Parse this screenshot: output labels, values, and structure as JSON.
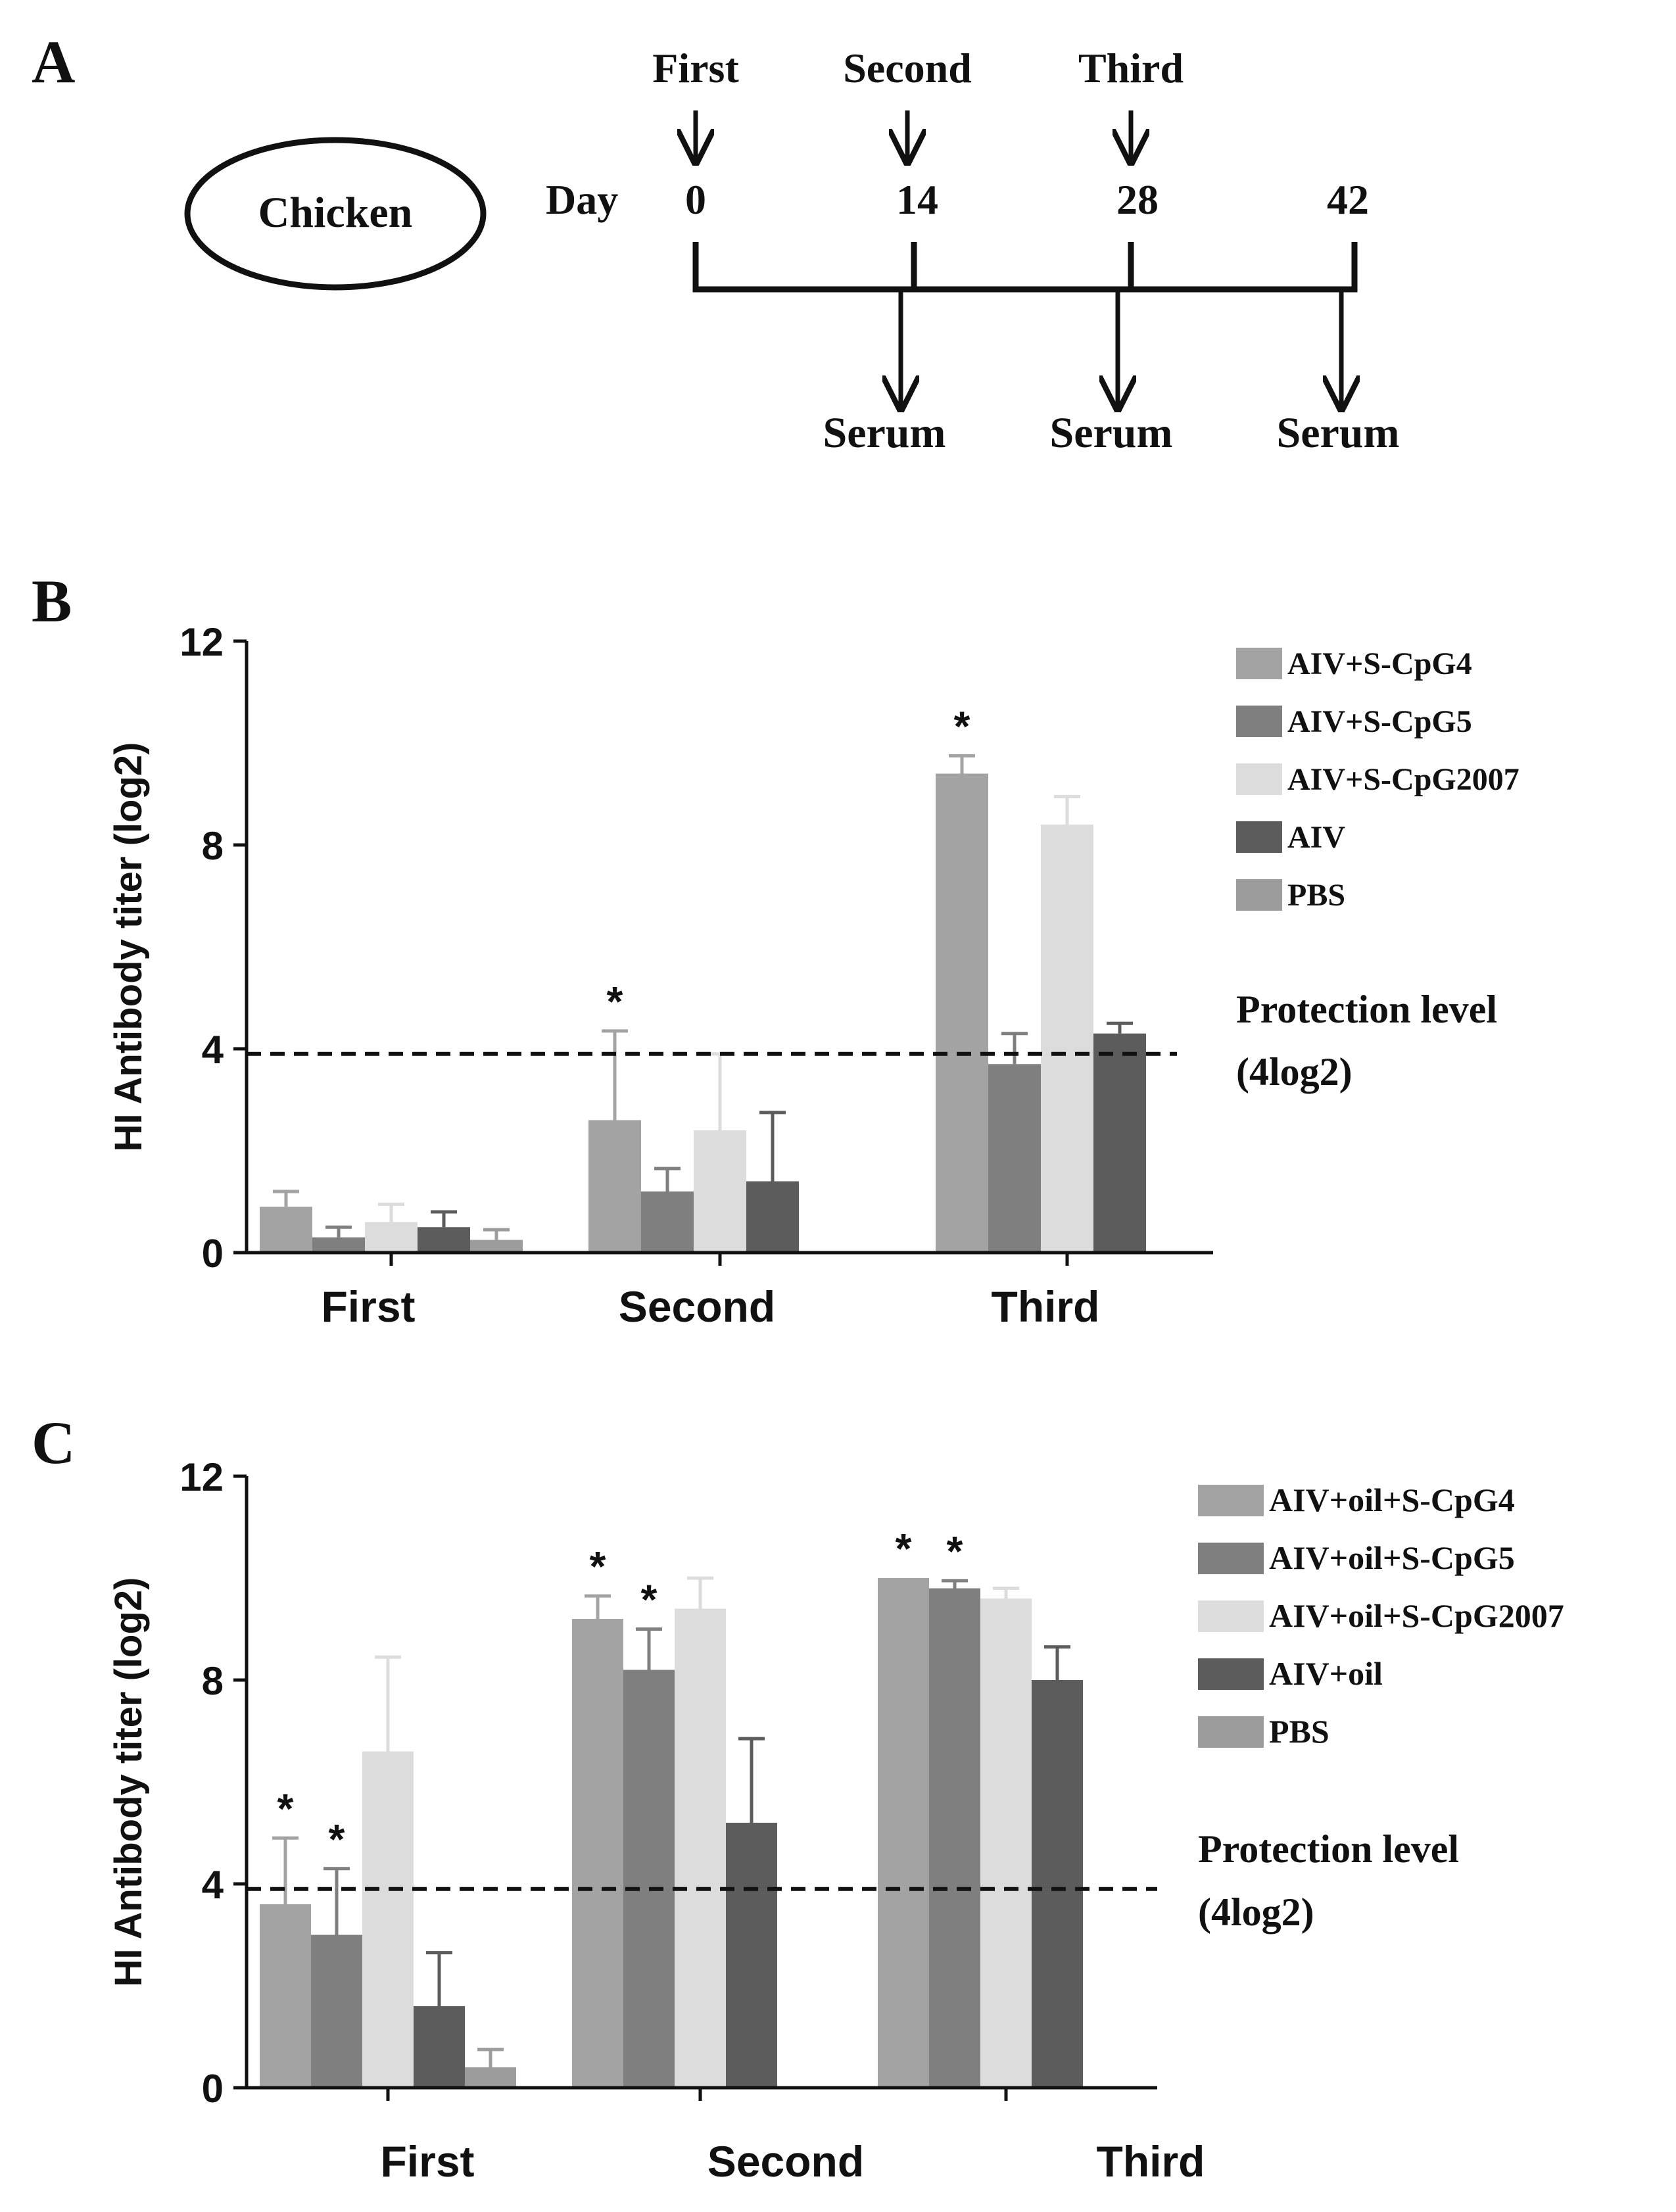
{
  "panels": {
    "a": {
      "letter": "A",
      "subject": "Chicken",
      "day_label": "Day",
      "top_labels": [
        "First",
        "Second",
        "Third"
      ],
      "days": [
        "0",
        "14",
        "28",
        "42"
      ],
      "bottom_labels": [
        "Serum",
        "Serum",
        "Serum"
      ]
    },
    "b": {
      "letter": "B"
    },
    "c": {
      "letter": "C"
    }
  },
  "colors": {
    "s_cpg4": "#a3a3a3",
    "s_cpg5": "#7f7f7f",
    "s_cpg2007": "#dcdcdc",
    "aiv": "#5c5c5c",
    "pbs": "#9c9c9c",
    "axis": "#111111"
  },
  "chart_data": [
    {
      "type": "bar",
      "panel": "B",
      "title": "",
      "xlabel": "",
      "ylabel": "HI Antibody titer (log2)",
      "ylim": [
        0,
        12
      ],
      "yticks": [
        "0",
        "4",
        "8",
        "12"
      ],
      "categories": [
        "First",
        "Second",
        "Third"
      ],
      "series": [
        {
          "name": "AIV+S-CpG4",
          "values": [
            0.9,
            2.6,
            9.4
          ],
          "errors": [
            0.3,
            1.75,
            0.35
          ],
          "stars": [
            "",
            "*",
            "*"
          ]
        },
        {
          "name": "AIV+S-CpG5",
          "values": [
            0.3,
            1.2,
            3.7
          ],
          "errors": [
            0.2,
            0.45,
            0.6
          ],
          "stars": [
            "",
            "",
            ""
          ]
        },
        {
          "name": "AIV+S-CpG2007",
          "values": [
            0.6,
            2.4,
            8.4
          ],
          "errors": [
            0.35,
            1.5,
            0.55
          ],
          "stars": [
            "",
            "",
            ""
          ]
        },
        {
          "name": "AIV",
          "values": [
            0.5,
            1.4,
            4.3
          ],
          "errors": [
            0.3,
            1.35,
            0.2
          ],
          "stars": [
            "",
            "",
            ""
          ]
        },
        {
          "name": "PBS",
          "values": [
            0.25,
            0.0,
            0.0
          ],
          "errors": [
            0.2,
            0.0,
            0.0
          ],
          "stars": [
            "",
            "",
            ""
          ]
        }
      ],
      "reference_line": {
        "value": 3.9,
        "label_line1": "Protection level",
        "label_line2": "(4log2)"
      },
      "legend_position": "right"
    },
    {
      "type": "bar",
      "panel": "C",
      "title": "",
      "xlabel": "",
      "ylabel": "HI Antibody titer (log2)",
      "ylim": [
        0,
        12
      ],
      "yticks": [
        "0",
        "4",
        "8",
        "12"
      ],
      "categories": [
        "First",
        "Second",
        "Third"
      ],
      "series": [
        {
          "name": "AIV+oil+S-CpG4",
          "values": [
            3.6,
            9.2,
            10.0
          ],
          "errors": [
            1.3,
            0.45,
            0.0
          ],
          "stars": [
            "*",
            "*",
            "*"
          ]
        },
        {
          "name": "AIV+oil+S-CpG5",
          "values": [
            3.0,
            8.2,
            9.8
          ],
          "errors": [
            1.3,
            0.8,
            0.15
          ],
          "stars": [
            "*",
            "*",
            "*"
          ]
        },
        {
          "name": "AIV+oil+S-CpG2007",
          "values": [
            6.6,
            9.4,
            9.6
          ],
          "errors": [
            1.85,
            0.6,
            0.2
          ],
          "stars": [
            "",
            "",
            ""
          ]
        },
        {
          "name": "AIV+oil",
          "values": [
            1.6,
            5.2,
            8.0
          ],
          "errors": [
            1.05,
            1.65,
            0.65
          ],
          "stars": [
            "",
            "",
            ""
          ]
        },
        {
          "name": "PBS",
          "values": [
            0.4,
            0.0,
            0.0
          ],
          "errors": [
            0.35,
            0.0,
            0.0
          ],
          "stars": [
            "",
            "",
            ""
          ]
        }
      ],
      "reference_line": {
        "value": 3.9,
        "label_line1": "Protection level",
        "label_line2": "(4log2)"
      },
      "legend_position": "right"
    }
  ]
}
